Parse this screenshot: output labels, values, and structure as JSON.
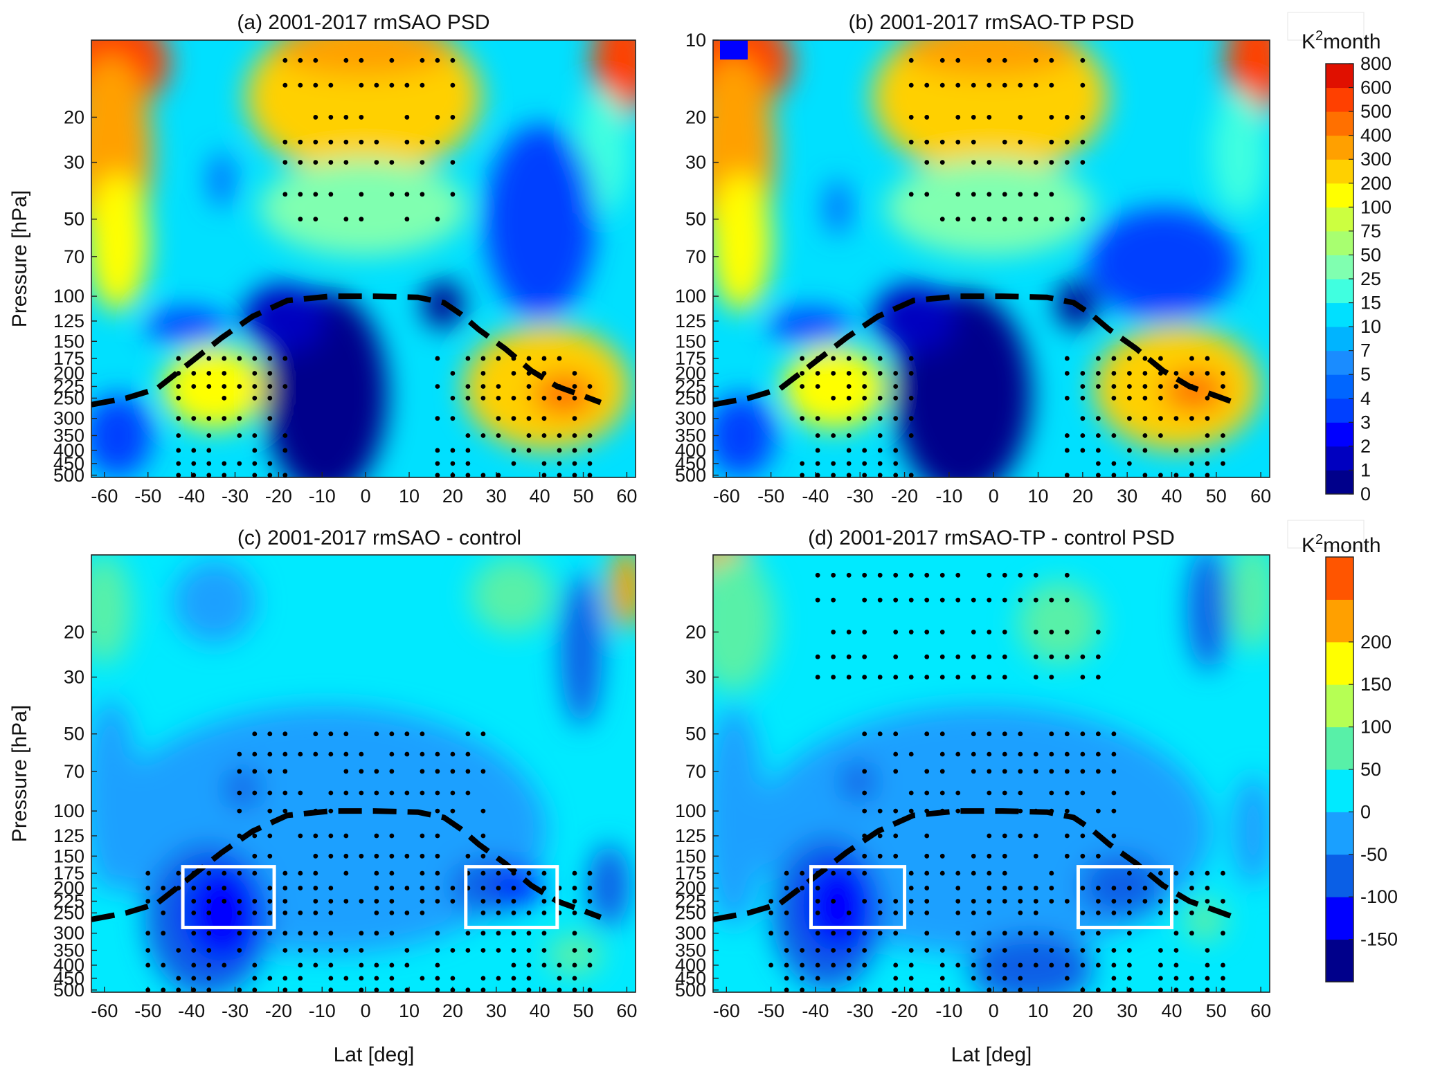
{
  "figure": {
    "xlabel": "Lat [deg]",
    "ylabel": "Pressure [hPa]"
  },
  "colorbars": [
    {
      "unit_base": "K",
      "unit_sup": "2",
      "unit_rest": "month",
      "levels": [
        "0",
        "1",
        "2",
        "3",
        "4",
        "5",
        "7",
        "10",
        "15",
        "25",
        "50",
        "75",
        "100",
        "200",
        "300",
        "400",
        "500",
        "600",
        "800"
      ],
      "colors": [
        "#00008b",
        "#0000c0",
        "#0000ff",
        "#0040ff",
        "#0066ff",
        "#1a8cff",
        "#00b4ff",
        "#00e0ff",
        "#40ffe0",
        "#80ffb0",
        "#a8ff70",
        "#ccff40",
        "#ffff00",
        "#ffd000",
        "#ffa000",
        "#ff7000",
        "#ff4000",
        "#e01000"
      ]
    },
    {
      "unit_base": "K",
      "unit_sup": "2",
      "unit_rest": "month",
      "levels": [
        "-150",
        "-100",
        "-50",
        "0",
        "50",
        "100",
        "150",
        "200"
      ],
      "colors": [
        "#00008b",
        "#0000ff",
        "#0a5fe6",
        "#1aa0ff",
        "#00eaff",
        "#58f0a8",
        "#b6ff54",
        "#ffff00",
        "#ffa000",
        "#ff5500"
      ]
    }
  ],
  "chart_data": [
    {
      "type": "heatmap",
      "title": "(a) 2001-2017 rmSAO PSD",
      "xlim": [
        -63,
        62
      ],
      "x_ticks": [
        "-60",
        "-50",
        "-40",
        "-30",
        "-20",
        "-10",
        "0",
        "10",
        "20",
        "30",
        "40",
        "50",
        "60"
      ],
      "y_ticks": [
        "20",
        "30",
        "50",
        "70",
        "100",
        "125",
        "150",
        "175",
        "200",
        "225",
        "250",
        "300",
        "350",
        "400",
        "450",
        "500"
      ],
      "y_scale": "log",
      "ylim": [
        10,
        510
      ],
      "colorbar": 0,
      "tropopause": [
        [
          -63,
          265
        ],
        [
          -55,
          250
        ],
        [
          -48,
          230
        ],
        [
          -40,
          180
        ],
        [
          -33,
          145
        ],
        [
          -26,
          120
        ],
        [
          -18,
          104
        ],
        [
          -8,
          100
        ],
        [
          2,
          100
        ],
        [
          12,
          101
        ],
        [
          18,
          106
        ],
        [
          22,
          118
        ],
        [
          26,
          135
        ],
        [
          32,
          160
        ],
        [
          38,
          195
        ],
        [
          44,
          225
        ],
        [
          50,
          245
        ],
        [
          54,
          260
        ]
      ],
      "boxes": []
    },
    {
      "type": "heatmap",
      "title": "(b) 2001-2017 rmSAO-TP PSD",
      "xlim": [
        -63,
        62
      ],
      "x_ticks": [
        "-60",
        "-50",
        "-40",
        "-30",
        "-20",
        "-10",
        "0",
        "10",
        "20",
        "30",
        "40",
        "50",
        "60"
      ],
      "y_ticks": [
        "10",
        "20",
        "30",
        "50",
        "70",
        "100",
        "125",
        "150",
        "175",
        "200",
        "225",
        "250",
        "300",
        "350",
        "400",
        "450",
        "500"
      ],
      "y_scale": "log",
      "ylim": [
        10,
        510
      ],
      "colorbar": 0,
      "tropopause": [
        [
          -63,
          265
        ],
        [
          -55,
          250
        ],
        [
          -48,
          230
        ],
        [
          -40,
          180
        ],
        [
          -33,
          145
        ],
        [
          -26,
          120
        ],
        [
          -18,
          104
        ],
        [
          -8,
          100
        ],
        [
          2,
          100
        ],
        [
          12,
          101
        ],
        [
          18,
          106
        ],
        [
          22,
          118
        ],
        [
          26,
          135
        ],
        [
          32,
          160
        ],
        [
          38,
          195
        ],
        [
          44,
          225
        ],
        [
          50,
          245
        ],
        [
          54,
          260
        ]
      ],
      "boxes": []
    },
    {
      "type": "heatmap",
      "title": "(c) 2001-2017 rmSAO - control",
      "xlim": [
        -63,
        62
      ],
      "x_ticks": [
        "-60",
        "-50",
        "-40",
        "-30",
        "-20",
        "-10",
        "0",
        "10",
        "20",
        "30",
        "40",
        "50",
        "60"
      ],
      "y_ticks": [
        "20",
        "30",
        "50",
        "70",
        "100",
        "125",
        "150",
        "175",
        "200",
        "225",
        "250",
        "300",
        "350",
        "400",
        "450",
        "500"
      ],
      "y_scale": "log",
      "ylim": [
        10,
        510
      ],
      "colorbar": 1,
      "tropopause": [
        [
          -63,
          265
        ],
        [
          -55,
          250
        ],
        [
          -48,
          230
        ],
        [
          -40,
          180
        ],
        [
          -33,
          145
        ],
        [
          -26,
          120
        ],
        [
          -18,
          104
        ],
        [
          -8,
          100
        ],
        [
          2,
          100
        ],
        [
          12,
          101
        ],
        [
          18,
          106
        ],
        [
          22,
          118
        ],
        [
          26,
          135
        ],
        [
          32,
          160
        ],
        [
          38,
          195
        ],
        [
          44,
          225
        ],
        [
          50,
          245
        ],
        [
          54,
          260
        ]
      ],
      "boxes": [
        [
          -42,
          -21,
          165,
          285
        ],
        [
          23,
          44,
          165,
          285
        ]
      ]
    },
    {
      "type": "heatmap",
      "title": "(d) 2001-2017 rmSAO-TP - control PSD",
      "xlim": [
        -63,
        62
      ],
      "x_ticks": [
        "-60",
        "-50",
        "-40",
        "-30",
        "-20",
        "-10",
        "0",
        "10",
        "20",
        "30",
        "40",
        "50",
        "60"
      ],
      "y_ticks": [
        "20",
        "30",
        "50",
        "70",
        "100",
        "125",
        "150",
        "175",
        "200",
        "225",
        "250",
        "300",
        "350",
        "400",
        "450",
        "500"
      ],
      "y_scale": "log",
      "ylim": [
        10,
        510
      ],
      "colorbar": 1,
      "tropopause": [
        [
          -63,
          265
        ],
        [
          -55,
          250
        ],
        [
          -48,
          230
        ],
        [
          -40,
          180
        ],
        [
          -33,
          145
        ],
        [
          -26,
          120
        ],
        [
          -18,
          104
        ],
        [
          -8,
          100
        ],
        [
          2,
          100
        ],
        [
          12,
          101
        ],
        [
          18,
          106
        ],
        [
          22,
          118
        ],
        [
          26,
          135
        ],
        [
          32,
          160
        ],
        [
          38,
          195
        ],
        [
          44,
          225
        ],
        [
          50,
          245
        ],
        [
          54,
          260
        ]
      ],
      "boxes": [
        [
          -41,
          -20,
          165,
          285
        ],
        [
          19,
          40,
          165,
          285
        ]
      ]
    }
  ]
}
